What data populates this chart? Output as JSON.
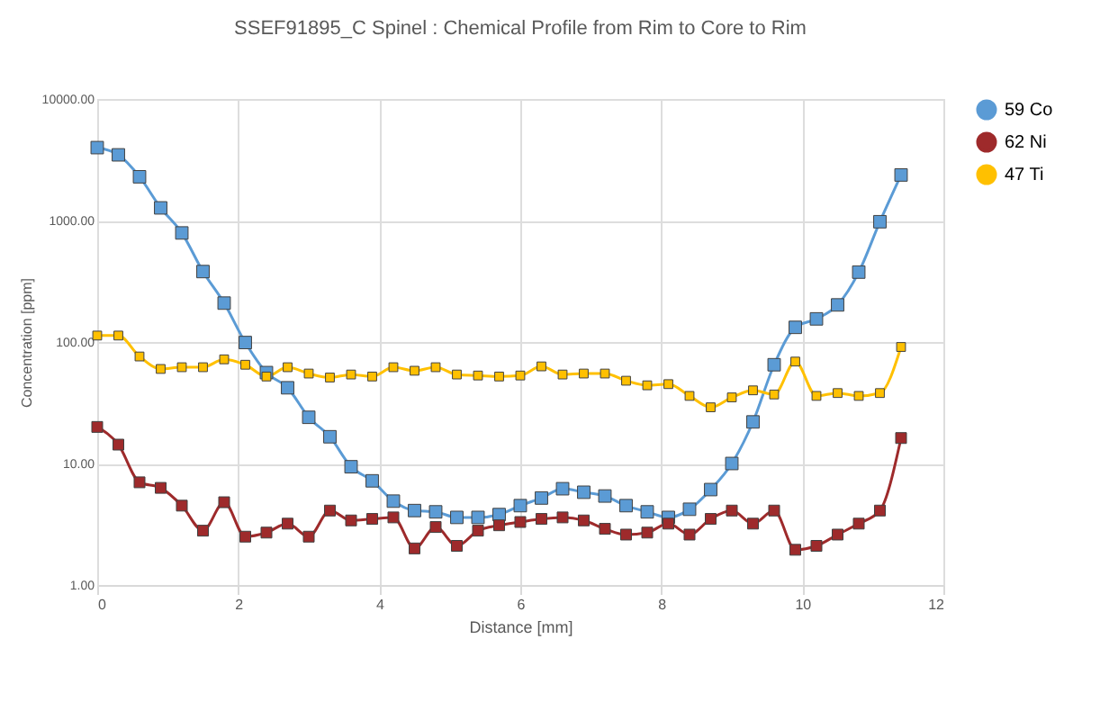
{
  "chart_data": {
    "type": "line",
    "title": "SSEF91895_C  Spinel :    Chemical Profile from Rim to Core to Rim",
    "xlabel": "Distance [mm]",
    "ylabel": "Concentration [ppm]",
    "x": [
      0,
      0.3,
      0.6,
      0.9,
      1.2,
      1.5,
      1.8,
      2.1,
      2.4,
      2.7,
      3.0,
      3.3,
      3.6,
      3.9,
      4.2,
      4.5,
      4.8,
      5.1,
      5.4,
      5.7,
      6.0,
      6.3,
      6.6,
      6.9,
      7.2,
      7.5,
      7.8,
      8.1,
      8.4,
      8.7,
      9.0,
      9.3,
      9.6,
      9.9,
      10.2,
      10.5,
      10.8,
      11.1,
      11.4
    ],
    "series": [
      {
        "name": "59 Co",
        "color": "#5b9bd5",
        "values": [
          3980,
          3470,
          2290,
          1270,
          790,
          380,
          209,
          99,
          56,
          42,
          24,
          16.6,
          9.4,
          7.2,
          4.9,
          4.1,
          4.0,
          3.6,
          3.6,
          3.8,
          4.5,
          5.2,
          6.2,
          5.8,
          5.4,
          4.5,
          4.0,
          3.6,
          4.2,
          6.1,
          10,
          22,
          65,
          132,
          155,
          202,
          376,
          977,
          2370
        ]
      },
      {
        "name": "62 Ni",
        "color": "#9e2a2b",
        "values": [
          20,
          14.3,
          7.0,
          6.3,
          4.5,
          2.8,
          4.8,
          2.5,
          2.7,
          3.2,
          2.5,
          4.1,
          3.4,
          3.5,
          3.6,
          2.0,
          3.0,
          2.1,
          2.8,
          3.1,
          3.3,
          3.5,
          3.6,
          3.4,
          2.9,
          2.6,
          2.7,
          3.2,
          2.6,
          3.5,
          4.1,
          3.2,
          4.1,
          1.95,
          2.1,
          2.6,
          3.2,
          4.1,
          16.2
        ]
      },
      {
        "name": "47 Ti",
        "color": "#ffc000",
        "values": [
          113,
          113,
          76,
          60,
          62,
          62,
          72,
          65,
          52,
          62,
          55,
          51,
          54,
          52,
          62,
          58,
          62,
          54,
          53,
          52,
          53,
          63,
          54,
          55,
          55,
          48,
          44,
          45,
          36,
          29,
          35,
          40,
          37,
          69,
          36,
          38,
          36,
          38,
          91
        ]
      }
    ],
    "xlim": [
      0,
      12
    ],
    "xticks": [
      0,
      2,
      4,
      6,
      8,
      10,
      12
    ],
    "ylim": [
      1,
      10000
    ],
    "yticks": [
      {
        "value": 1,
        "label": "1.00"
      },
      {
        "value": 10,
        "label": "10.00"
      },
      {
        "value": 100,
        "label": "100.00"
      },
      {
        "value": 1000,
        "label": "1000.00"
      },
      {
        "value": 10000,
        "label": "10000.00"
      }
    ],
    "log": true,
    "grid": true,
    "legend": "right",
    "marker": "square",
    "line_style": "solid"
  }
}
